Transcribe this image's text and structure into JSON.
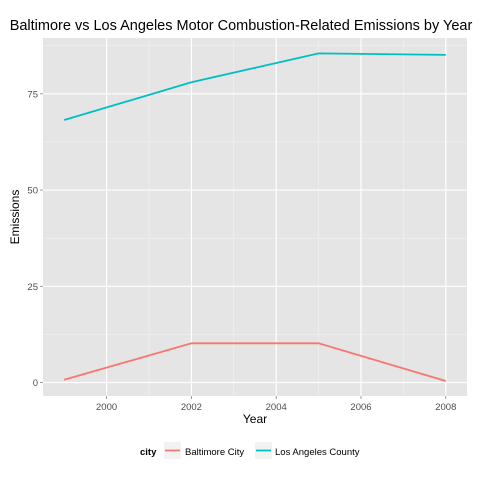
{
  "chart_data": {
    "type": "line",
    "title": "Baltimore vs Los Angeles Motor Combustion-Related Emissions by Year",
    "xlabel": "Year",
    "ylabel": "Emissions",
    "x": [
      1999,
      2002,
      2005,
      2008
    ],
    "xlim": [
      1998.5,
      2008.5
    ],
    "ylim": [
      -3.5,
      89.5
    ],
    "xticks": [
      2000,
      2002,
      2004,
      2006,
      2008
    ],
    "yticks": [
      0,
      25,
      50,
      75
    ],
    "grid": true,
    "legend": {
      "title": "city",
      "position": "bottom"
    },
    "series": [
      {
        "name": "Baltimore City",
        "color": "#F8766D",
        "values": [
          0.7,
          10.2,
          10.2,
          0.4
        ]
      },
      {
        "name": "Los Angeles County",
        "color": "#00BFC4",
        "values": [
          68.2,
          78.0,
          85.5,
          85.1
        ]
      }
    ]
  }
}
